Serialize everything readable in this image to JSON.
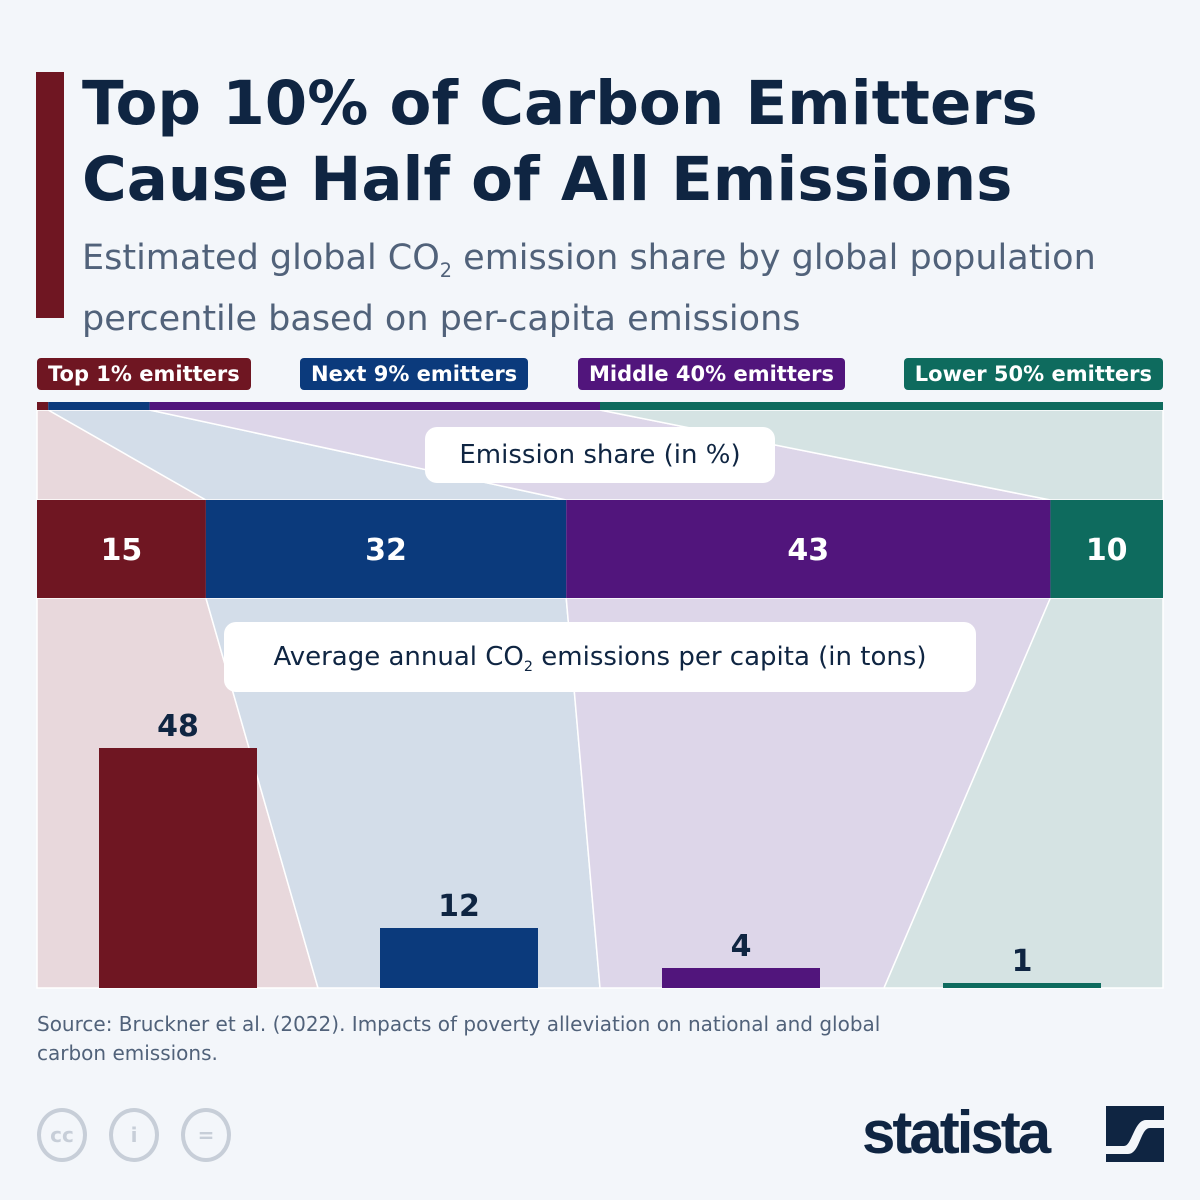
{
  "title": "Top 10% of Carbon Emitters Cause Half of All Emissions",
  "subtitle_pre": "Estimated global CO",
  "subtitle_sub": "2",
  "subtitle_post": " emission share by global population percentile based on per-capita emissions",
  "share_label": "Emission share (in %)",
  "avg_label_pre": "Average annual CO",
  "avg_label_sub": "2",
  "avg_label_post": " emissions per capita (in tons)",
  "source": "Source: Bruckner et al. (2022). Impacts of poverty alleviation on national and global carbon emissions.",
  "footer": {
    "cc": "cc",
    "by": "i",
    "nd": "=",
    "logo": "statista"
  },
  "chart_data": {
    "type": "bar",
    "categories": [
      "Top 1% emitters",
      "Next 9% emitters",
      "Middle 40% emitters",
      "Lower 50% emitters"
    ],
    "population_share": [
      1,
      9,
      40,
      50
    ],
    "emission_share": [
      15,
      32,
      43,
      10
    ],
    "per_capita_tons": [
      48,
      12,
      4,
      1
    ],
    "colors": [
      "#6f1622",
      "#0b3a7c",
      "#51157c",
      "#0e6b5e"
    ],
    "tints": [
      "#e8d8dc",
      "#d3dde9",
      "#ddd6e9",
      "#d5e3e3"
    ]
  }
}
